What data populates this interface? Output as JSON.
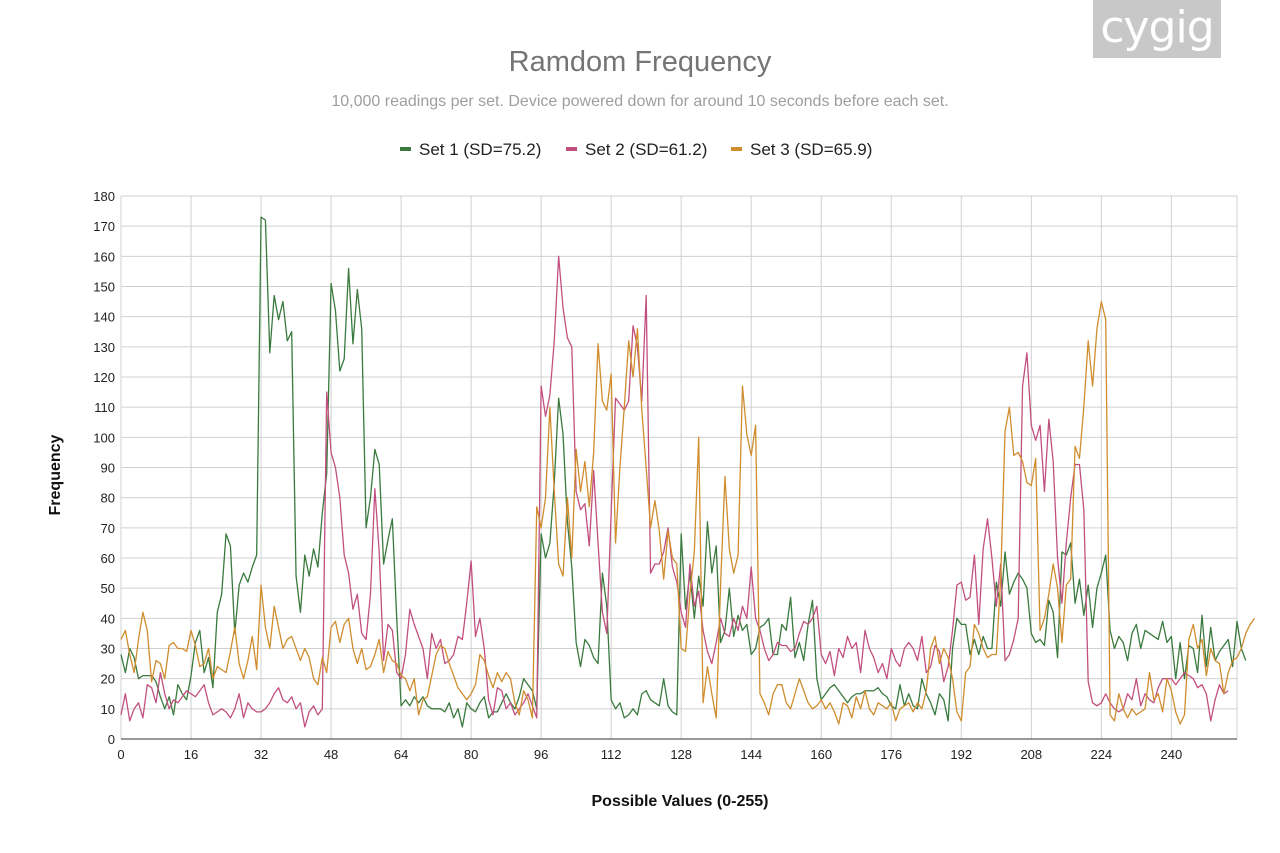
{
  "logo_text": "cygig",
  "chart_data": {
    "type": "line",
    "title": "Ramdom Frequency",
    "subtitle": "10,000 readings per set. Device powered down for around 10 seconds before each set.",
    "xlabel": "Possible Values (0-255)",
    "ylabel": "Frequency",
    "xlim": [
      0,
      255
    ],
    "ylim": [
      0,
      180
    ],
    "x_ticks": [
      0,
      16,
      32,
      48,
      64,
      80,
      96,
      112,
      128,
      144,
      160,
      176,
      192,
      208,
      224,
      240
    ],
    "y_ticks": [
      0,
      10,
      20,
      30,
      40,
      50,
      60,
      70,
      80,
      90,
      100,
      110,
      120,
      130,
      140,
      150,
      160,
      170,
      180
    ],
    "grid": true,
    "legend_position": "top",
    "series": [
      {
        "name": "Set 1 (SD=75.2)",
        "color": "#3a7a3e",
        "values": [
          28,
          22,
          30,
          27,
          20,
          21,
          21,
          21,
          19,
          14,
          10,
          14,
          8,
          18,
          15,
          13,
          21,
          32,
          36,
          22,
          27,
          17,
          42,
          48,
          68,
          64,
          35,
          51,
          55,
          52,
          57,
          61,
          173,
          172,
          128,
          147,
          139,
          145,
          132,
          135,
          54,
          42,
          61,
          54,
          63,
          57,
          75,
          88,
          151,
          142,
          122,
          126,
          156,
          131,
          149,
          136,
          70,
          80,
          96,
          91,
          58,
          66,
          73,
          40,
          11,
          13,
          11,
          14,
          12,
          14,
          11,
          10,
          10,
          10,
          9,
          12,
          7,
          10,
          4,
          12,
          10,
          9,
          12,
          14,
          7,
          9,
          9,
          12,
          15,
          12,
          10,
          14,
          20,
          18,
          16,
          10,
          68,
          60,
          65,
          85,
          113,
          101,
          72,
          57,
          32,
          24,
          33,
          31,
          27,
          25,
          55,
          44,
          13,
          10,
          12,
          7,
          8,
          10,
          8,
          15,
          16,
          13,
          12,
          11,
          20,
          11,
          9,
          8,
          68,
          43,
          55,
          40,
          54,
          44,
          72,
          55,
          64,
          32,
          36,
          50,
          34,
          41,
          36,
          38,
          28,
          30,
          37,
          38,
          40,
          28,
          28,
          38,
          36,
          47,
          27,
          32,
          26,
          38,
          46,
          20,
          13,
          15,
          17,
          18,
          16,
          14,
          12,
          14,
          15,
          15,
          16,
          16,
          16,
          17,
          15,
          14,
          11,
          10,
          18,
          11,
          15,
          11,
          10,
          20,
          15,
          12,
          8,
          15,
          13,
          6,
          30,
          40,
          38,
          38,
          28,
          33,
          28,
          34,
          30,
          30,
          52,
          44,
          62,
          48,
          52,
          55,
          53,
          50,
          35,
          32,
          33,
          31,
          46,
          42,
          27,
          62,
          61,
          65,
          45,
          53,
          41,
          51,
          37,
          50,
          55,
          61,
          36,
          30,
          34,
          32,
          26,
          35,
          38,
          30,
          36,
          35,
          34,
          33,
          39,
          32,
          34,
          20,
          32,
          20,
          31,
          30,
          22,
          41,
          24,
          37,
          26,
          29,
          31,
          33,
          24,
          39,
          30,
          26
        ]
      },
      {
        "name": "Set 2 (SD=61.2)",
        "color": "#c2507f",
        "values": [
          8,
          15,
          6,
          10,
          12,
          7,
          18,
          17,
          12,
          22,
          15,
          10,
          13,
          12,
          14,
          16,
          15,
          14,
          16,
          18,
          12,
          8,
          9,
          10,
          9,
          7,
          10,
          15,
          7,
          12,
          10,
          9,
          9,
          10,
          12,
          15,
          17,
          13,
          12,
          14,
          10,
          12,
          4,
          9,
          11,
          8,
          10,
          115,
          95,
          90,
          80,
          61,
          55,
          43,
          48,
          35,
          33,
          48,
          83,
          62,
          26,
          38,
          36,
          22,
          20,
          28,
          43,
          38,
          34,
          30,
          20,
          35,
          30,
          33,
          25,
          26,
          28,
          34,
          33,
          45,
          59,
          34,
          40,
          30,
          13,
          8,
          17,
          16,
          10,
          12,
          8,
          10,
          12,
          15,
          11,
          7,
          117,
          107,
          114,
          132,
          160,
          143,
          133,
          130,
          82,
          76,
          78,
          64,
          89,
          65,
          42,
          35,
          75,
          113,
          111,
          109,
          112,
          137,
          130,
          112,
          147,
          55,
          58,
          58,
          62,
          70,
          57,
          52,
          42,
          37,
          58,
          44,
          49,
          36,
          29,
          25,
          32,
          40,
          35,
          34,
          40,
          36,
          44,
          40,
          57,
          40,
          36,
          30,
          26,
          28,
          32,
          31,
          31,
          29,
          30,
          35,
          39,
          38,
          40,
          44,
          28,
          25,
          29,
          21,
          30,
          27,
          34,
          30,
          32,
          22,
          36,
          30,
          27,
          22,
          25,
          20,
          30,
          26,
          24,
          30,
          32,
          30,
          26,
          34,
          22,
          24,
          31,
          29,
          19,
          24,
          36,
          51,
          52,
          46,
          47,
          61,
          38,
          63,
          73,
          60,
          44,
          58,
          26,
          28,
          33,
          40,
          117,
          128,
          104,
          99,
          104,
          82,
          106,
          92,
          60,
          45,
          65,
          80,
          91,
          91,
          76,
          19,
          12,
          11,
          12,
          15,
          12,
          10,
          9,
          10,
          15,
          13,
          20,
          11,
          15,
          13,
          12,
          17,
          20,
          20,
          20,
          18,
          20,
          22,
          21,
          20,
          17,
          18,
          15,
          6,
          13,
          18,
          15,
          16
        ]
      },
      {
        "name": "Set 3 (SD=65.9)",
        "color": "#d08d2e",
        "values": [
          33,
          36,
          28,
          22,
          33,
          42,
          36,
          19,
          26,
          25,
          20,
          31,
          32,
          30,
          30,
          29,
          36,
          31,
          24,
          25,
          30,
          20,
          24,
          23,
          22,
          29,
          37,
          25,
          20,
          26,
          34,
          23,
          51,
          37,
          30,
          44,
          37,
          30,
          33,
          34,
          30,
          26,
          30,
          27,
          20,
          18,
          27,
          22,
          37,
          39,
          32,
          38,
          40,
          30,
          25,
          30,
          23,
          24,
          28,
          33,
          22,
          29,
          26,
          25,
          21,
          20,
          16,
          20,
          8,
          13,
          14,
          21,
          28,
          31,
          30,
          25,
          21,
          17,
          15,
          13,
          15,
          18,
          28,
          26,
          21,
          17,
          22,
          19,
          22,
          20,
          12,
          8,
          16,
          13,
          7,
          77,
          70,
          80,
          110,
          82,
          58,
          54,
          80,
          60,
          96,
          82,
          92,
          77,
          95,
          131,
          112,
          109,
          121,
          65,
          90,
          110,
          132,
          120,
          136,
          109,
          90,
          70,
          79,
          69,
          53,
          69,
          60,
          58,
          30,
          29,
          48,
          62,
          100,
          12,
          24,
          15,
          7,
          51,
          87,
          63,
          55,
          61,
          117,
          101,
          94,
          104,
          15,
          12,
          8,
          15,
          18,
          18,
          12,
          10,
          15,
          20,
          16,
          12,
          10,
          11,
          13,
          10,
          12,
          9,
          5,
          12,
          11,
          7,
          14,
          10,
          16,
          10,
          8,
          12,
          11,
          10,
          12,
          6,
          10,
          11,
          12,
          9,
          12,
          10,
          16,
          30,
          34,
          25,
          30,
          27,
          20,
          9,
          6,
          22,
          24,
          38,
          35,
          30,
          27,
          28,
          28,
          53,
          102,
          110,
          94,
          95,
          92,
          85,
          84,
          93,
          36,
          40,
          48,
          58,
          50,
          32,
          51,
          53,
          97,
          93,
          110,
          132,
          117,
          136,
          145,
          139,
          8,
          6,
          15,
          10,
          7,
          10,
          8,
          9,
          10,
          22,
          13,
          15,
          9,
          20,
          16,
          9,
          5,
          8,
          33,
          38,
          30,
          33,
          21,
          30,
          26,
          25,
          15,
          22,
          26,
          27,
          30,
          35,
          38,
          40
        ]
      }
    ]
  }
}
